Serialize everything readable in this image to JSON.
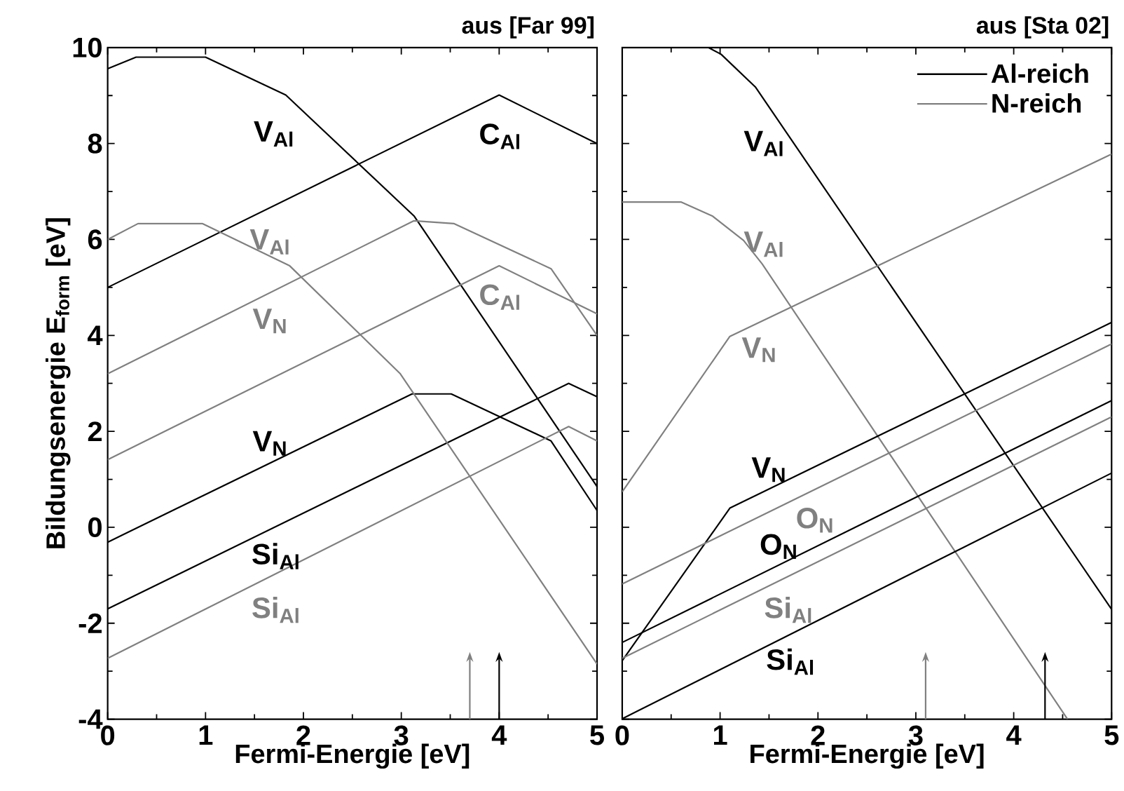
{
  "chart_data": [
    {
      "type": "line",
      "title": "aus [Far 99]",
      "xlabel": "Fermi-Energie [eV]",
      "ylabel": "Bildungsenergie E$_{form}$ [eV]",
      "xlim": [
        0,
        5
      ],
      "ylim": [
        -4,
        10
      ],
      "xticks": [
        0,
        1,
        2,
        3,
        4,
        5
      ],
      "yticks": [
        -4,
        -2,
        0,
        2,
        4,
        6,
        8,
        10
      ],
      "marker": "none",
      "line_style": "solid",
      "series": [
        {
          "color": "#000000",
          "x": [
            0,
            0.29,
            1.0,
            1.82,
            3.13,
            5
          ],
          "values": [
            9.56,
            9.8,
            9.8,
            9.01,
            6.49,
            0.85
          ]
        },
        {
          "color": "#000000",
          "x": [
            0,
            4.0,
            5
          ],
          "values": [
            5.0,
            9.01,
            8.0
          ]
        },
        {
          "color": "#000000",
          "x": [
            0,
            3.11,
            3.51,
            4.53,
            5
          ],
          "values": [
            -0.31,
            2.78,
            2.78,
            1.8,
            0.35
          ]
        },
        {
          "color": "#000000",
          "x": [
            0,
            4.71,
            5
          ],
          "values": [
            -1.7,
            3.0,
            2.72
          ]
        },
        {
          "color": "#808080",
          "x": [
            0,
            0.31,
            0.97,
            1.86,
            2.99,
            5
          ],
          "values": [
            6.0,
            6.33,
            6.33,
            5.45,
            3.2,
            -2.85
          ]
        },
        {
          "color": "#808080",
          "x": [
            0,
            3.13,
            3.54,
            4.53,
            5
          ],
          "values": [
            3.2,
            6.39,
            6.33,
            5.39,
            4.0
          ]
        },
        {
          "color": "#808080",
          "x": [
            0,
            4.0,
            5
          ],
          "values": [
            1.41,
            5.45,
            4.45
          ]
        },
        {
          "color": "#808080",
          "x": [
            0,
            4.71,
            5
          ],
          "values": [
            -2.73,
            2.1,
            1.8
          ]
        }
      ],
      "annotations": [
        "V$_{Al}$",
        "C$_{Al}$",
        "V$_{Al}$",
        "V$_{N}$",
        "C$_{Al}$",
        "V$_{N}$",
        "Si$_{Al}$",
        "Si$_{Al}$"
      ],
      "ref_lines": [
        {
          "axis": "x",
          "value": 3.7,
          "color": "#808080"
        },
        {
          "axis": "x",
          "value": 4.0,
          "color": "#000000"
        }
      ]
    },
    {
      "type": "line",
      "title": "aus [Sta 02]",
      "xlabel": "Fermi-Energie [eV]",
      "xlim": [
        0,
        5
      ],
      "ylim": [
        -4,
        10
      ],
      "xticks": [
        0,
        1,
        2,
        3,
        4,
        5
      ],
      "yticks": [
        -4,
        -2,
        0,
        2,
        4,
        6,
        8,
        10
      ],
      "tick_labels": "x",
      "marker": "none",
      "line_style": "solid",
      "legend": "top right",
      "series": [
        {
          "name": "Al-reich",
          "color": "#000000",
          "x": [
            0.88,
            1.01,
            1.36,
            5
          ],
          "values": [
            10,
            9.86,
            9.18,
            -1.71
          ]
        },
        {
          "name": "N-reich",
          "color": "#808080",
          "x": [
            0,
            0.6,
            0.92,
            1.24,
            1.43,
            4.55
          ],
          "values": [
            6.78,
            6.78,
            6.49,
            5.98,
            5.49,
            -4
          ]
        },
        {
          "color": "#000000",
          "x": [
            0,
            1.1,
            5
          ],
          "values": [
            -2.78,
            0.4,
            4.27
          ]
        },
        {
          "color": "#000000",
          "x": [
            0,
            5
          ],
          "values": [
            -2.4,
            2.64
          ]
        },
        {
          "color": "#000000",
          "x": [
            0,
            5
          ],
          "values": [
            -3.99,
            1.13
          ]
        },
        {
          "color": "#808080",
          "x": [
            0,
            1.1,
            5
          ],
          "values": [
            0.74,
            3.98,
            7.78
          ]
        },
        {
          "color": "#808080",
          "x": [
            0,
            5
          ],
          "values": [
            -1.18,
            3.82
          ]
        },
        {
          "color": "#808080",
          "x": [
            0,
            5
          ],
          "values": [
            -2.73,
            2.3
          ]
        }
      ],
      "annotations": [
        "V$_{Al}$",
        "V$_{Al}$",
        "V$_{N}$",
        "V$_{N}$",
        "O$_{N}$",
        "O$_{N}$",
        "Si$_{Al}$",
        "Si$_{Al}$"
      ],
      "ref_lines": [
        {
          "axis": "x",
          "value": 3.1,
          "color": "#808080"
        },
        {
          "axis": "x",
          "value": 4.32,
          "color": "#000000"
        }
      ]
    }
  ]
}
